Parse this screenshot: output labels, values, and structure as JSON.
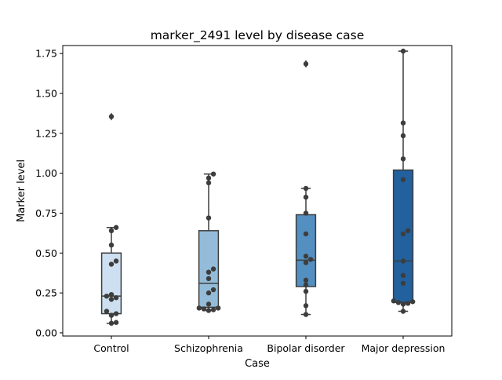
{
  "chart_data": {
    "type": "box",
    "title": "marker_2491 level by disease case",
    "xlabel": "Case",
    "ylabel": "Marker level",
    "ylim": [
      -0.02,
      1.8
    ],
    "yticks": [
      0.0,
      0.25,
      0.5,
      0.75,
      1.0,
      1.25,
      1.5,
      1.75
    ],
    "ytick_labels": [
      "0.00",
      "0.25",
      "0.50",
      "0.75",
      "1.00",
      "1.25",
      "1.50",
      "1.75"
    ],
    "grid": false,
    "categories": [
      "Control",
      "Schizophrenia",
      "Bipolar disorder",
      "Major depression"
    ],
    "colors": [
      "#cddff0",
      "#94bcd9",
      "#538fc1",
      "#22619e"
    ],
    "boxes": [
      {
        "q1": 0.12,
        "median": 0.23,
        "q3": 0.5,
        "whisker_low": 0.06,
        "whisker_high": 0.66,
        "outliers": [
          1.355
        ]
      },
      {
        "q1": 0.16,
        "median": 0.31,
        "q3": 0.64,
        "whisker_low": 0.14,
        "whisker_high": 0.995,
        "outliers": []
      },
      {
        "q1": 0.29,
        "median": 0.455,
        "q3": 0.74,
        "whisker_low": 0.115,
        "whisker_high": 0.905,
        "outliers": [
          1.685
        ]
      },
      {
        "q1": 0.19,
        "median": 0.45,
        "q3": 1.02,
        "whisker_low": 0.135,
        "whisker_high": 1.765,
        "outliers": []
      }
    ],
    "points": [
      [
        0.06,
        0.065,
        0.11,
        0.12,
        0.135,
        0.21,
        0.22,
        0.23,
        0.24,
        0.43,
        0.45,
        0.55,
        0.64,
        0.66,
        1.355
      ],
      [
        0.14,
        0.145,
        0.15,
        0.155,
        0.155,
        0.18,
        0.25,
        0.27,
        0.34,
        0.38,
        0.4,
        0.72,
        0.94,
        0.97,
        0.995
      ],
      [
        0.115,
        0.17,
        0.26,
        0.3,
        0.33,
        0.44,
        0.46,
        0.48,
        0.62,
        0.75,
        0.85,
        0.905,
        1.685
      ],
      [
        0.135,
        0.18,
        0.185,
        0.19,
        0.195,
        0.2,
        0.31,
        0.36,
        0.45,
        0.62,
        0.64,
        0.96,
        1.09,
        1.235,
        1.315,
        1.765
      ]
    ]
  }
}
